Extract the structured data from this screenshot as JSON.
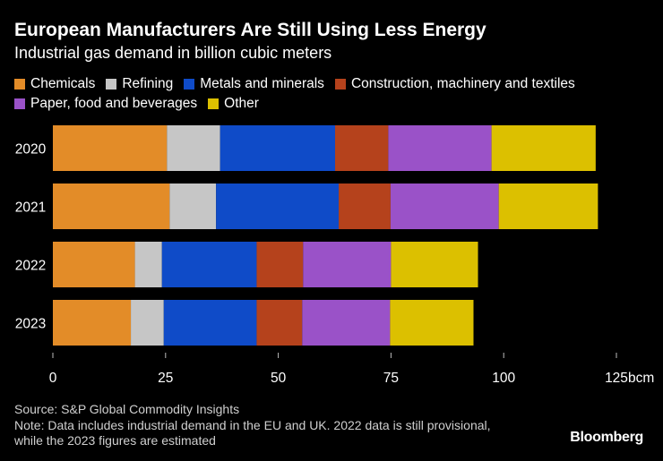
{
  "header": {
    "title": "European Manufacturers Are Still Using Less Energy",
    "subtitle": "Industrial gas demand in billion cubic meters"
  },
  "chart_data": {
    "type": "bar",
    "orientation": "horizontal",
    "stacked": true,
    "title": "European Manufacturers Are Still Using Less Energy",
    "subtitle": "Industrial gas demand in billion cubic meters",
    "categories": [
      "2020",
      "2021",
      "2022",
      "2023"
    ],
    "series": [
      {
        "name": "Chemicals",
        "color": "#e38c28",
        "values": [
          25.3,
          25.9,
          18.2,
          17.3
        ]
      },
      {
        "name": "Refining",
        "color": "#c6c6c6",
        "values": [
          11.8,
          10.3,
          6.0,
          7.3
        ]
      },
      {
        "name": "Metals and minerals",
        "color": "#0f4bc8",
        "values": [
          25.5,
          27.2,
          21.0,
          20.6
        ]
      },
      {
        "name": "Construction, machinery and textiles",
        "color": "#b5421c",
        "values": [
          11.8,
          11.5,
          10.3,
          10.1
        ]
      },
      {
        "name": "Paper, food and beverages",
        "color": "#9a52c8",
        "values": [
          22.9,
          24.0,
          19.5,
          19.5
        ]
      },
      {
        "name": "Other",
        "color": "#dcc000",
        "values": [
          23.1,
          22.0,
          19.3,
          18.5
        ]
      }
    ],
    "xlim": [
      0,
      125
    ],
    "xticks": [
      0,
      25,
      50,
      75,
      100,
      125
    ],
    "xtick_labels": [
      "0",
      "25",
      "50",
      "75",
      "100",
      "125"
    ],
    "x_unit": "bcm",
    "legend_position": "top"
  },
  "footer": {
    "source": "Source: S&P Global Commodity Insights",
    "note": "Note: Data includes industrial demand in the EU and UK. 2022 data is still provisional, while the 2023 figures are estimated",
    "brand": "Bloomberg"
  }
}
